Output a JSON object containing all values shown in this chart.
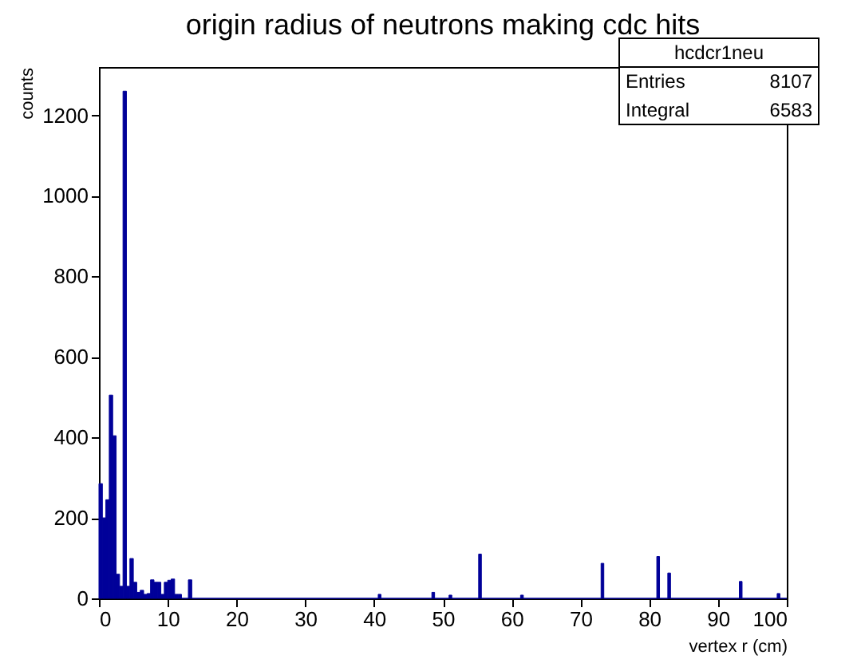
{
  "chart_data": {
    "type": "histogram",
    "title": "origin radius of neutrons making cdc hits",
    "xlabel": "vertex r (cm)",
    "ylabel": "counts",
    "bins": [
      0.0,
      0.5,
      1.0,
      1.5,
      2.0,
      2.5,
      3.0,
      3.5,
      4.0,
      4.5,
      5.0,
      5.5,
      6.0,
      6.5,
      7.0,
      7.5,
      8.0,
      8.5,
      9.0,
      9.5,
      10.0,
      10.5,
      11.0,
      11.5,
      12.0,
      13.0,
      13.5,
      40.6,
      41.0,
      48.4,
      48.8,
      50.9,
      51.3,
      55.2,
      55.6,
      61.3,
      61.7,
      73.0,
      73.4,
      81.1,
      81.5,
      82.7,
      83.1,
      93.1,
      93.5,
      98.6,
      99.0,
      100.0
    ],
    "values": [
      285,
      200,
      245,
      505,
      404,
      60,
      30,
      1260,
      30,
      99,
      40,
      15,
      20,
      10,
      12,
      46,
      40,
      40,
      10,
      40,
      45,
      48,
      10,
      10,
      0,
      46,
      0,
      10,
      0,
      15,
      0,
      8,
      0,
      110,
      0,
      8,
      0,
      87,
      0,
      104,
      0,
      63,
      0,
      42,
      0,
      12,
      0
    ],
    "color": "#000099",
    "xlim": [
      0,
      100
    ],
    "ylim": [
      0,
      1320
    ],
    "xticks": [
      0,
      10,
      20,
      30,
      40,
      50,
      60,
      70,
      80,
      90,
      100
    ],
    "yticks": [
      0,
      200,
      400,
      600,
      800,
      1000,
      1200
    ],
    "grid": false,
    "annotations": [
      "hcdcr1neu",
      "Entries 8107",
      "Integral 6583"
    ]
  }
}
